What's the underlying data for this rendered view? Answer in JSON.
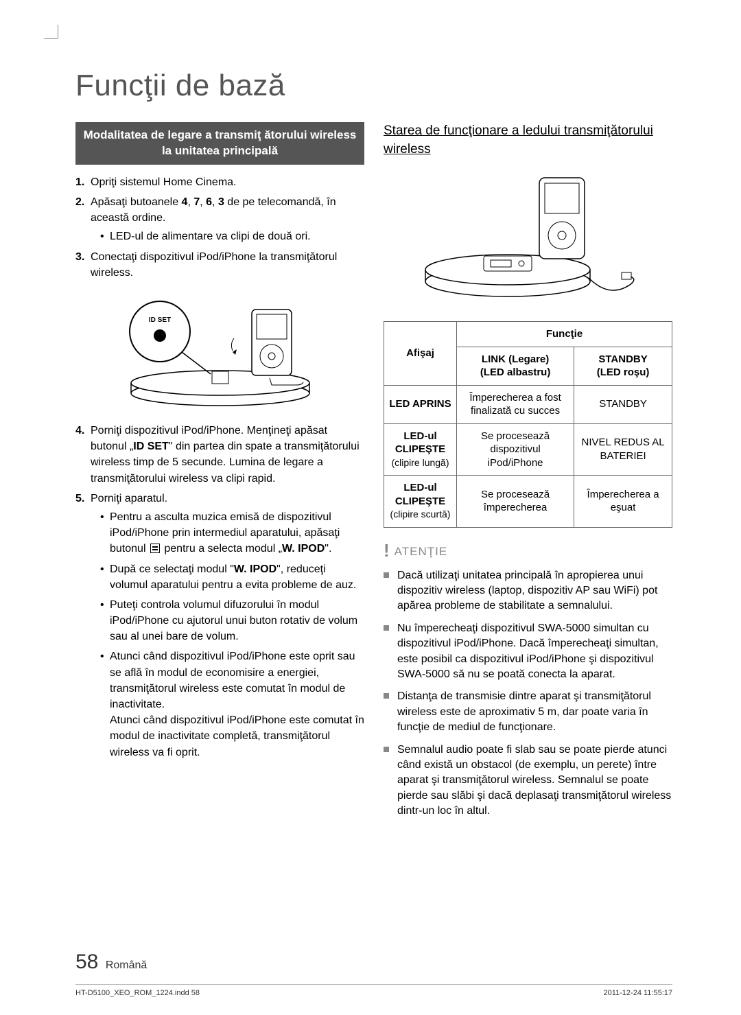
{
  "title": "Funcţii de bază",
  "left": {
    "sectionBar": "Modalitatea de legare a transmiţ ătorului wireless la unitatea principală",
    "steps": [
      {
        "n": "1.",
        "t": "Opriţi sistemul Home Cinema."
      },
      {
        "n": "2.",
        "t": "Apăsaţi butoanele <b>4</b>, <b>7</b>, <b>6</b>, <b>3</b> de pe telecomandă, în această ordine.",
        "sub": [
          "LED-ul de alimentare va clipi de două ori."
        ]
      },
      {
        "n": "3.",
        "t": "Conectaţi dispozitivul iPod/iPhone la transmiţătorul wireless."
      }
    ],
    "illusLabel": "ID SET",
    "steps2": [
      {
        "n": "4.",
        "t": "Porniţi dispozitivul iPod/iPhone. Menţineţi apăsat butonul „<b>ID SET</b>\" din partea din spate a transmiţătorului wireless timp de 5 secunde. Lumina de legare a transmiţătorului wireless va clipi rapid."
      },
      {
        "n": "5.",
        "t": "Porniţi aparatul.",
        "sub": [
          "Pentru a asculta muzica emisă de dispozitivul iPod/iPhone prin intermediul aparatului, apăsaţi butonul __ICON__ pentru a selecta modul „<b>W. IPOD</b>\".",
          "După ce selectaţi modul \"<b>W. IPOD</b>\", reduceţi volumul aparatului pentru a evita probleme de auz.",
          "Puteţi controla volumul difuzorului în modul iPod/iPhone cu ajutorul unui buton rotativ de volum sau al unei bare de volum.",
          "Atunci când dispozitivul iPod/iPhone este oprit sau se află în modul de economisire a energiei, transmiţătorul wireless este comutat în modul de inactivitate.<br>Atunci când dispozitivul iPod/iPhone este comutat în modul de inactivitate completă, transmiţătorul wireless va fi oprit."
        ]
      }
    ]
  },
  "right": {
    "heading": "Starea de funcţionare a ledului transmiţătorului wireless",
    "table": {
      "h_afisaj": "Afişaj",
      "h_functie": "Funcţie",
      "h_link": "LINK (Legare)<br>(LED albastru)",
      "h_standby": "STANDBY<br>(LED roşu)",
      "rows": [
        {
          "a": "LED APRINS",
          "l": "Împerecherea a fost finalizată cu succes",
          "s": "STANDBY"
        },
        {
          "a": "LED-ul CLIPEŞTE",
          "asub": "(clipire lungă)",
          "l": "Se procesează dispozitivul iPod/iPhone",
          "s": "NIVEL REDUS AL BATERIEI"
        },
        {
          "a": "LED-ul CLIPEŞTE",
          "asub": "(clipire scurtă)",
          "l": "Se procesează împerecherea",
          "s": "Împerecherea a eşuat"
        }
      ]
    },
    "atentieLabel": "ATENŢIE",
    "atentie": [
      "Dacă utilizaţi unitatea principală în apropierea unui dispozitiv wireless (laptop, dispozitiv AP sau WiFi) pot apărea probleme de stabilitate a semnalului.",
      "Nu împerecheaţi dispozitivul SWA-5000 simultan cu dispozitivul iPod/iPhone. Dacă împerecheaţi simultan, este posibil ca dispozitivul iPod/iPhone şi dispozitivul SWA-5000 să nu se poată conecta la aparat.",
      "Distanţa de transmisie dintre aparat şi transmiţătorul wireless este de aproximativ 5 m, dar poate varia în funcţie de mediul de funcţionare.",
      "Semnalul audio poate fi slab sau se poate pierde atunci când există un obstacol (de exemplu, un perete) între aparat şi transmiţătorul wireless. Semnalul se poate pierde sau slăbi şi dacă deplasaţi transmiţătorul wireless dintr-un loc în altul."
    ]
  },
  "footer": {
    "page": "58",
    "lang": "Română",
    "file": "HT-D5100_XEO_ROM_1224.indd   58",
    "ts": "2011-12-24   11:55:17"
  }
}
